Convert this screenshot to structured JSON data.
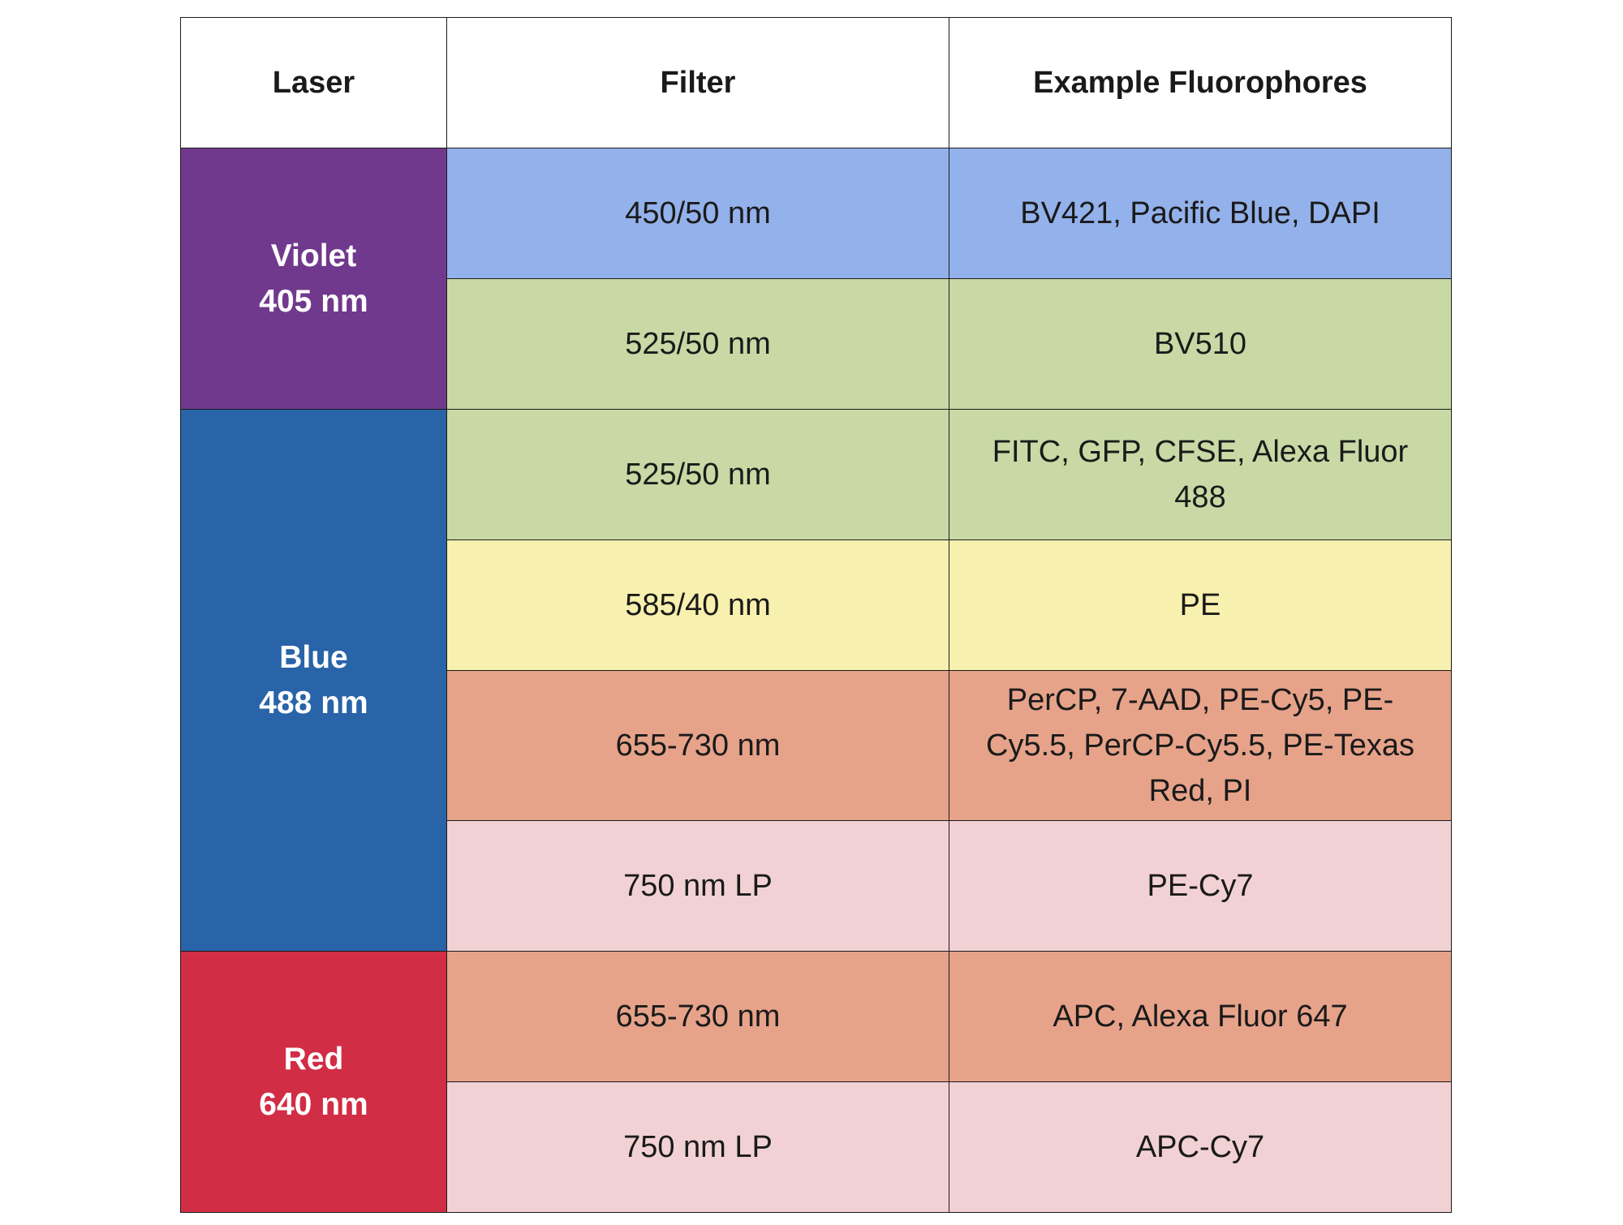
{
  "table": {
    "headers": {
      "laser": "Laser",
      "filter": "Filter",
      "fluorophores": "Example Fluorophores"
    },
    "lasers": [
      {
        "name": "Violet",
        "wavelength": "405 nm",
        "color": "#71398D"
      },
      {
        "name": "Blue",
        "wavelength": "488 nm",
        "color": "#2963A8"
      },
      {
        "name": "Red",
        "wavelength": "640 nm",
        "color": "#D12D45"
      }
    ],
    "rows": [
      {
        "filter": "450/50 nm",
        "fluorophores": "BV421, Pacific Blue, DAPI",
        "color": "#93B1EA"
      },
      {
        "filter": "525/50 nm",
        "fluorophores": "BV510",
        "color": "#C8D9A5"
      },
      {
        "filter": "525/50 nm",
        "fluorophores": "FITC, GFP, CFSE, Alexa Fluor 488",
        "color": "#C8D9A5"
      },
      {
        "filter": "585/40 nm",
        "fluorophores": "PE",
        "color": "#F8F0AE"
      },
      {
        "filter": "655-730 nm",
        "fluorophores": "PerCP, 7-AAD, PE-Cy5, PE-Cy5.5, PerCP-Cy5.5, PE-Texas Red, PI",
        "color": "#E6A38A"
      },
      {
        "filter": "750 nm LP",
        "fluorophores": "PE-Cy7",
        "color": "#F2D1D5"
      },
      {
        "filter": "655-730 nm",
        "fluorophores": "APC, Alexa Fluor 647",
        "color": "#E6A38A"
      },
      {
        "filter": "750 nm LP",
        "fluorophores": "APC-Cy7",
        "color": "#F2D1D5"
      }
    ]
  }
}
